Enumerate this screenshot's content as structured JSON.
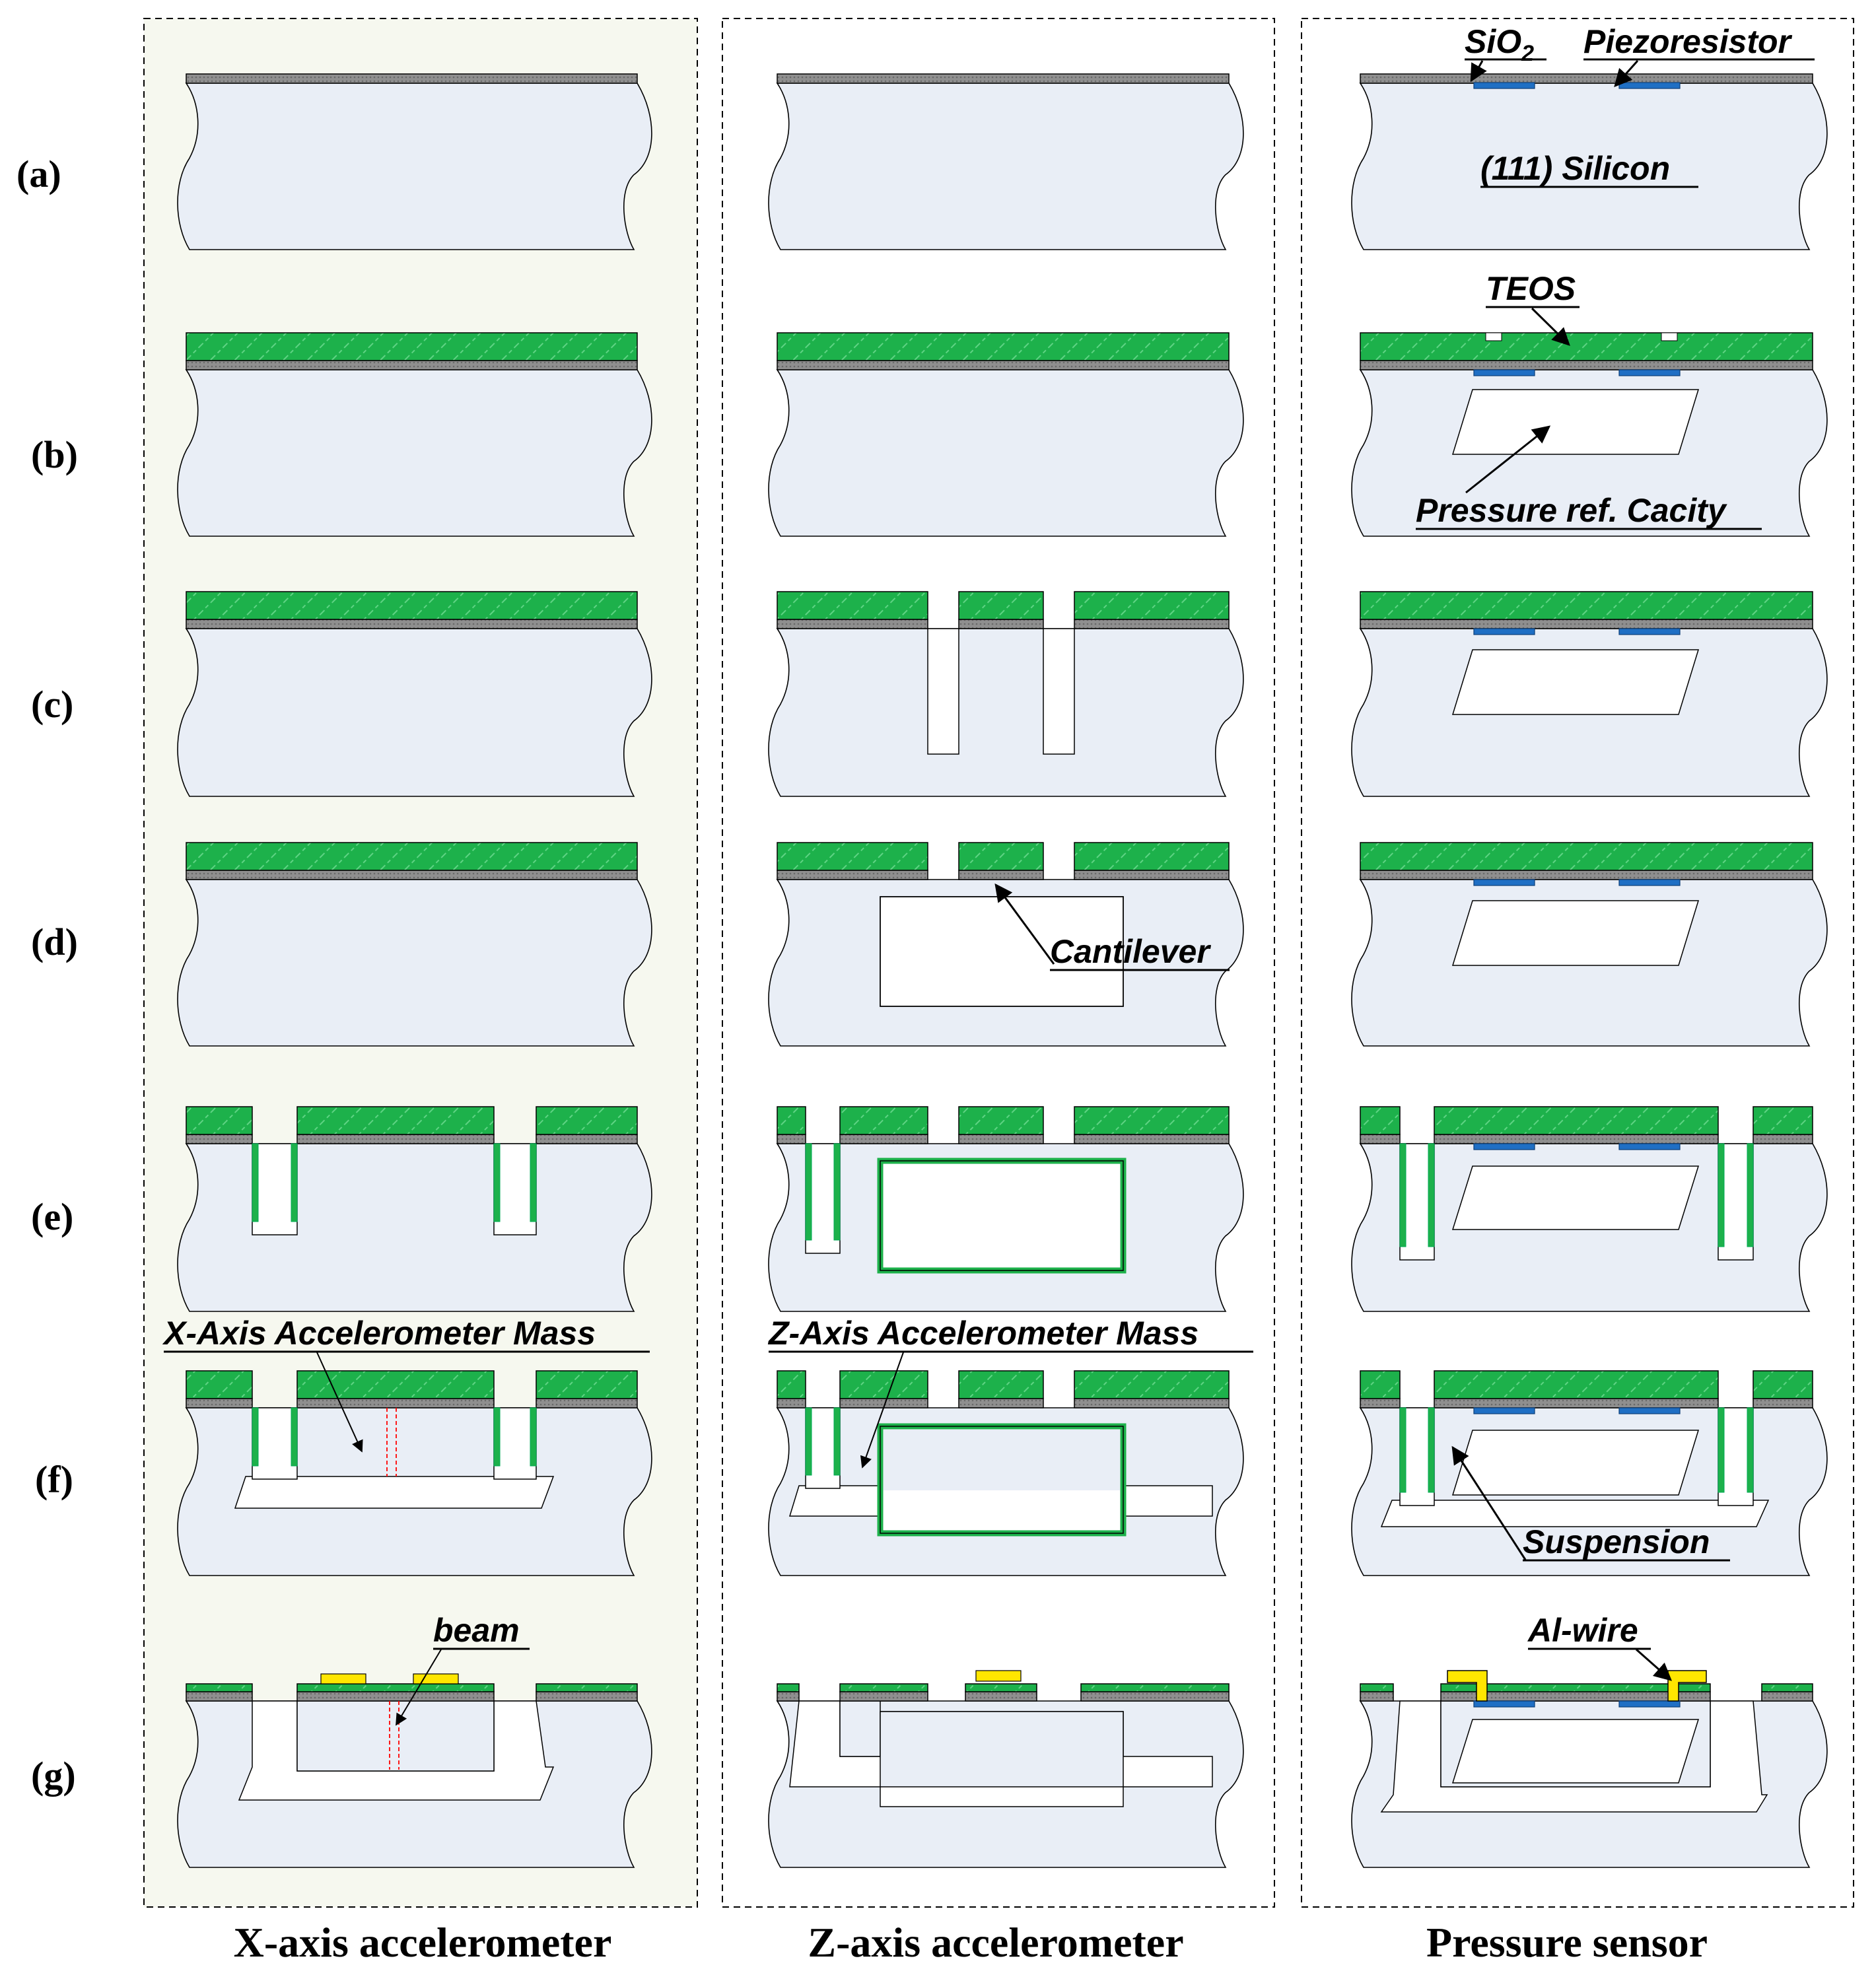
{
  "rows": [
    "(a)",
    "(b)",
    "(c)",
    "(d)",
    "(e)",
    "(f)",
    "(g)"
  ],
  "columns": [
    "X-axis accelerometer",
    "Z-axis accelerometer",
    "Pressure sensor"
  ],
  "annotations": {
    "sio2": "SiO",
    "sio2_sub": "2",
    "piezoresistor": "Piezoresistor",
    "silicon": "(111) Silicon",
    "teos": "TEOS",
    "cavity": "Pressure ref. Cacity",
    "cantilever": "Cantilever",
    "x_mass": "X-Axis Accelerometer Mass",
    "z_mass": "Z-Axis Accelerometer Mass",
    "suspension": "Suspension",
    "beam": "beam",
    "alwire": "Al-wire"
  },
  "colors": {
    "teos": "#1db14b",
    "oxide": "#8f8f8f",
    "silicon": "#e9eef6",
    "piezo": "#1f6fc4",
    "aluminum": "#ffe600",
    "panel_x_bg": "#f6f8ef",
    "trace": "#ff0000"
  }
}
